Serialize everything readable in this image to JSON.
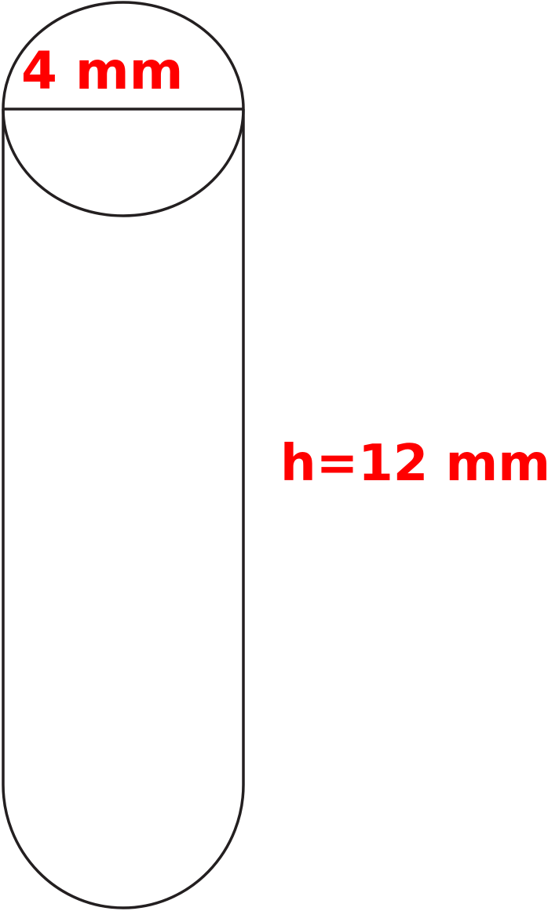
{
  "diagram": {
    "diameter_label": "4 mm",
    "height_label": "h=12 mm",
    "label_color": "#ff0000",
    "outline_color": "#231f20"
  }
}
